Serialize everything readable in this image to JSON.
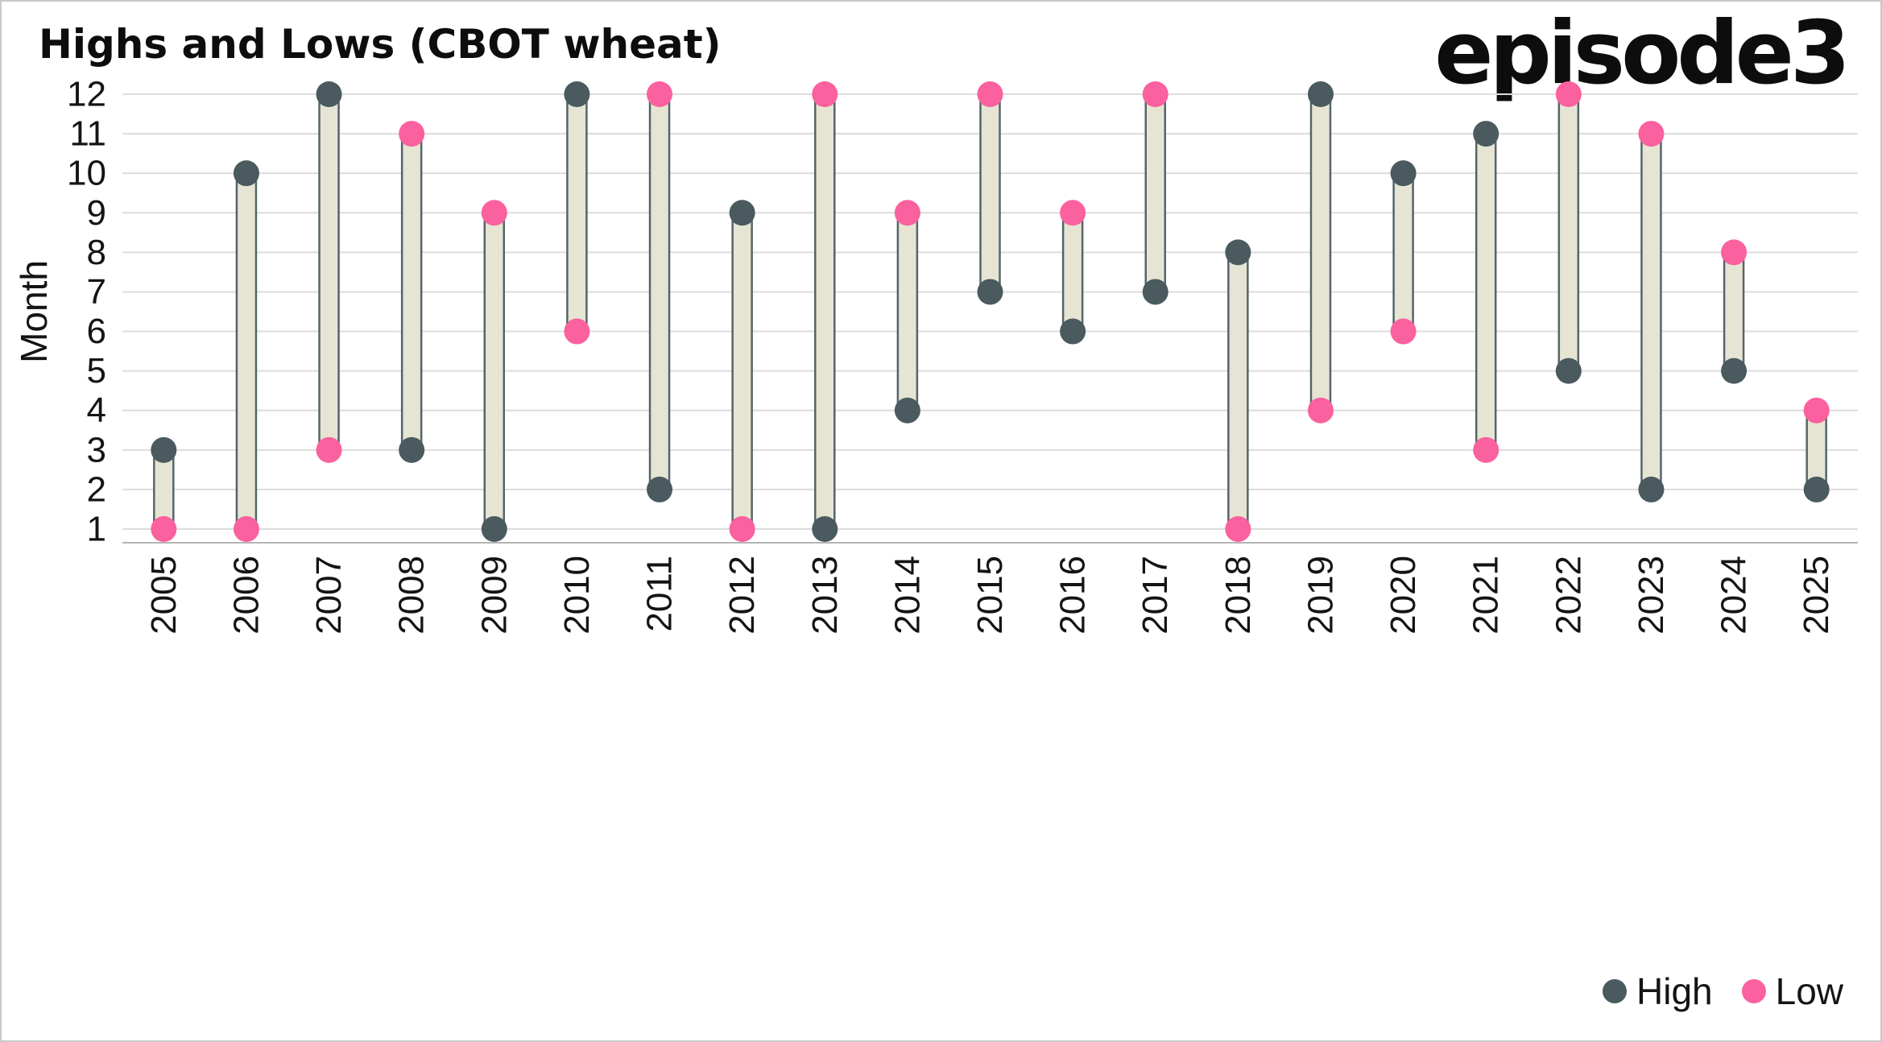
{
  "page": {
    "title": "Highs and Lows (CBOT wheat)",
    "logo": "episode3"
  },
  "chart_data": {
    "type": "dumbbell",
    "title": "Highs and Lows (CBOT wheat)",
    "xlabel": "",
    "ylabel": "Month",
    "ylim": [
      1,
      12
    ],
    "yticks": [
      1,
      2,
      3,
      4,
      5,
      6,
      7,
      8,
      9,
      10,
      11,
      12
    ],
    "grid": "horizontal",
    "legend_position": "bottom-right",
    "categories": [
      "2005",
      "2006",
      "2007",
      "2008",
      "2009",
      "2010",
      "2011",
      "2012",
      "2013",
      "2014",
      "2015",
      "2016",
      "2017",
      "2018",
      "2019",
      "2020",
      "2021",
      "2022",
      "2023",
      "2024",
      "2025"
    ],
    "series": [
      {
        "name": "High",
        "values": [
          3,
          10,
          12,
          3,
          1,
          12,
          2,
          9,
          1,
          4,
          7,
          6,
          7,
          8,
          12,
          10,
          11,
          5,
          2,
          5,
          2
        ]
      },
      {
        "name": "Low",
        "values": [
          1,
          1,
          3,
          11,
          9,
          6,
          12,
          1,
          12,
          9,
          12,
          9,
          12,
          1,
          4,
          6,
          3,
          12,
          11,
          8,
          4
        ]
      }
    ],
    "colors": {
      "high": "#4a5a5f",
      "low": "#fa619e",
      "bar_fill": "#e6e5d4",
      "bar_stroke": "#55656a",
      "gridline": "#dcdcdc",
      "axis": "#b5b5b5",
      "text": "#141414"
    }
  },
  "legend": {
    "items": [
      {
        "label": "High",
        "color": "#4a5a5f"
      },
      {
        "label": "Low",
        "color": "#fa619e"
      }
    ]
  }
}
